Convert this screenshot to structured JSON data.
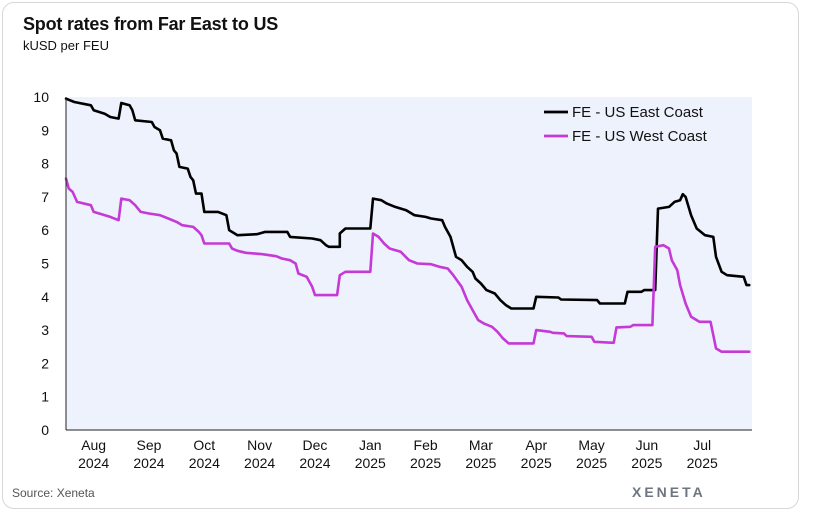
{
  "header": {
    "title": "Spot rates from Far East to US",
    "subtitle": "kUSD per FEU"
  },
  "footer": {
    "source": "Source: Xeneta",
    "brand": "XENETA"
  },
  "colors": {
    "east": "#000000",
    "west": "#c53ad6",
    "plot_bg": "#edf2fc",
    "axis": "#222222"
  },
  "chart_data": {
    "type": "line",
    "title": "Spot rates from Far East to US",
    "ylabel": "kUSD per FEU",
    "xlabel": "",
    "ylim": [
      0,
      10
    ],
    "xlim": [
      0,
      12.4
    ],
    "y_ticks": [
      0,
      1,
      2,
      3,
      4,
      5,
      6,
      7,
      8,
      9,
      10
    ],
    "x_ticks": [
      {
        "x": 0.5,
        "month": "Aug",
        "year": "2024"
      },
      {
        "x": 1.5,
        "month": "Sep",
        "year": "2024"
      },
      {
        "x": 2.5,
        "month": "Oct",
        "year": "2024"
      },
      {
        "x": 3.5,
        "month": "Nov",
        "year": "2024"
      },
      {
        "x": 4.5,
        "month": "Dec",
        "year": "2024"
      },
      {
        "x": 5.5,
        "month": "Jan",
        "year": "2025"
      },
      {
        "x": 6.5,
        "month": "Feb",
        "year": "2025"
      },
      {
        "x": 7.5,
        "month": "Mar",
        "year": "2025"
      },
      {
        "x": 8.5,
        "month": "Apr",
        "year": "2025"
      },
      {
        "x": 9.5,
        "month": "May",
        "year": "2025"
      },
      {
        "x": 10.5,
        "month": "Jun",
        "year": "2025"
      },
      {
        "x": 11.5,
        "month": "Jul",
        "year": "2025"
      }
    ],
    "legend": "top-right",
    "series": [
      {
        "name": "FE - US East Coast",
        "color": "#000000",
        "points": [
          [
            0.0,
            9.95
          ],
          [
            0.15,
            9.85
          ],
          [
            0.45,
            9.75
          ],
          [
            0.5,
            9.6
          ],
          [
            0.7,
            9.5
          ],
          [
            0.8,
            9.4
          ],
          [
            0.95,
            9.35
          ],
          [
            1.0,
            9.82
          ],
          [
            1.15,
            9.75
          ],
          [
            1.2,
            9.6
          ],
          [
            1.25,
            9.3
          ],
          [
            1.55,
            9.25
          ],
          [
            1.6,
            9.1
          ],
          [
            1.7,
            9.0
          ],
          [
            1.75,
            8.75
          ],
          [
            1.9,
            8.7
          ],
          [
            1.95,
            8.4
          ],
          [
            2.0,
            8.3
          ],
          [
            2.05,
            7.9
          ],
          [
            2.2,
            7.85
          ],
          [
            2.25,
            7.6
          ],
          [
            2.3,
            7.5
          ],
          [
            2.35,
            7.1
          ],
          [
            2.45,
            7.1
          ],
          [
            2.5,
            6.55
          ],
          [
            2.75,
            6.55
          ],
          [
            2.9,
            6.45
          ],
          [
            2.95,
            6.0
          ],
          [
            3.0,
            5.95
          ],
          [
            3.1,
            5.85
          ],
          [
            3.45,
            5.88
          ],
          [
            3.6,
            5.95
          ],
          [
            4.0,
            5.95
          ],
          [
            4.05,
            5.8
          ],
          [
            4.45,
            5.75
          ],
          [
            4.6,
            5.7
          ],
          [
            4.7,
            5.55
          ],
          [
            4.75,
            5.5
          ],
          [
            4.95,
            5.5
          ],
          [
            4.95,
            5.9
          ],
          [
            5.05,
            6.05
          ],
          [
            5.5,
            6.05
          ],
          [
            5.55,
            6.95
          ],
          [
            5.7,
            6.9
          ],
          [
            5.8,
            6.8
          ],
          [
            5.95,
            6.7
          ],
          [
            6.15,
            6.6
          ],
          [
            6.3,
            6.45
          ],
          [
            6.5,
            6.4
          ],
          [
            6.6,
            6.35
          ],
          [
            6.8,
            6.3
          ],
          [
            6.85,
            6.1
          ],
          [
            6.95,
            5.8
          ],
          [
            7.05,
            5.2
          ],
          [
            7.15,
            5.1
          ],
          [
            7.25,
            4.9
          ],
          [
            7.35,
            4.75
          ],
          [
            7.4,
            4.55
          ],
          [
            7.5,
            4.4
          ],
          [
            7.6,
            4.2
          ],
          [
            7.75,
            4.1
          ],
          [
            7.85,
            3.9
          ],
          [
            7.95,
            3.75
          ],
          [
            8.05,
            3.65
          ],
          [
            8.45,
            3.65
          ],
          [
            8.5,
            4.0
          ],
          [
            8.9,
            3.98
          ],
          [
            8.95,
            3.92
          ],
          [
            9.6,
            3.9
          ],
          [
            9.65,
            3.8
          ],
          [
            10.1,
            3.8
          ],
          [
            10.15,
            4.15
          ],
          [
            10.4,
            4.15
          ],
          [
            10.45,
            4.2
          ],
          [
            10.65,
            4.2
          ],
          [
            10.7,
            6.65
          ],
          [
            10.9,
            6.7
          ],
          [
            11.0,
            6.85
          ],
          [
            11.1,
            6.9
          ],
          [
            11.15,
            7.08
          ],
          [
            11.2,
            7.0
          ],
          [
            11.3,
            6.45
          ],
          [
            11.4,
            6.05
          ],
          [
            11.55,
            5.85
          ],
          [
            11.7,
            5.8
          ],
          [
            11.75,
            5.2
          ],
          [
            11.85,
            4.75
          ],
          [
            11.95,
            4.65
          ],
          [
            12.25,
            4.6
          ],
          [
            12.3,
            4.35
          ],
          [
            12.35,
            4.35
          ]
        ]
      },
      {
        "name": "FE - US West Coast",
        "color": "#c53ad6",
        "points": [
          [
            0.0,
            7.55
          ],
          [
            0.05,
            7.25
          ],
          [
            0.12,
            7.15
          ],
          [
            0.2,
            6.85
          ],
          [
            0.45,
            6.75
          ],
          [
            0.5,
            6.55
          ],
          [
            0.6,
            6.5
          ],
          [
            0.8,
            6.4
          ],
          [
            0.95,
            6.3
          ],
          [
            1.0,
            6.95
          ],
          [
            1.15,
            6.9
          ],
          [
            1.25,
            6.75
          ],
          [
            1.35,
            6.55
          ],
          [
            1.5,
            6.5
          ],
          [
            1.7,
            6.45
          ],
          [
            1.85,
            6.35
          ],
          [
            2.0,
            6.25
          ],
          [
            2.1,
            6.15
          ],
          [
            2.3,
            6.1
          ],
          [
            2.4,
            5.95
          ],
          [
            2.45,
            5.85
          ],
          [
            2.5,
            5.6
          ],
          [
            2.95,
            5.6
          ],
          [
            3.0,
            5.45
          ],
          [
            3.1,
            5.38
          ],
          [
            3.25,
            5.32
          ],
          [
            3.55,
            5.28
          ],
          [
            3.8,
            5.22
          ],
          [
            3.9,
            5.15
          ],
          [
            4.05,
            5.1
          ],
          [
            4.15,
            5.0
          ],
          [
            4.2,
            4.7
          ],
          [
            4.35,
            4.6
          ],
          [
            4.4,
            4.45
          ],
          [
            4.45,
            4.3
          ],
          [
            4.5,
            4.05
          ],
          [
            4.9,
            4.05
          ],
          [
            4.95,
            4.65
          ],
          [
            5.05,
            4.75
          ],
          [
            5.5,
            4.75
          ],
          [
            5.55,
            5.9
          ],
          [
            5.65,
            5.8
          ],
          [
            5.75,
            5.6
          ],
          [
            5.85,
            5.45
          ],
          [
            6.05,
            5.35
          ],
          [
            6.2,
            5.1
          ],
          [
            6.35,
            5.0
          ],
          [
            6.6,
            4.98
          ],
          [
            6.75,
            4.9
          ],
          [
            6.9,
            4.85
          ],
          [
            7.0,
            4.65
          ],
          [
            7.15,
            4.3
          ],
          [
            7.25,
            3.9
          ],
          [
            7.35,
            3.6
          ],
          [
            7.45,
            3.3
          ],
          [
            7.55,
            3.2
          ],
          [
            7.7,
            3.1
          ],
          [
            7.8,
            2.95
          ],
          [
            7.9,
            2.75
          ],
          [
            8.0,
            2.6
          ],
          [
            8.45,
            2.6
          ],
          [
            8.5,
            3.0
          ],
          [
            8.75,
            2.95
          ],
          [
            8.8,
            2.92
          ],
          [
            9.0,
            2.9
          ],
          [
            9.05,
            2.82
          ],
          [
            9.5,
            2.8
          ],
          [
            9.55,
            2.65
          ],
          [
            9.9,
            2.62
          ],
          [
            9.95,
            3.08
          ],
          [
            10.2,
            3.1
          ],
          [
            10.25,
            3.15
          ],
          [
            10.6,
            3.15
          ],
          [
            10.65,
            5.5
          ],
          [
            10.8,
            5.55
          ],
          [
            10.9,
            5.45
          ],
          [
            10.95,
            5.1
          ],
          [
            11.05,
            4.8
          ],
          [
            11.1,
            4.35
          ],
          [
            11.2,
            3.8
          ],
          [
            11.3,
            3.4
          ],
          [
            11.45,
            3.25
          ],
          [
            11.65,
            3.25
          ],
          [
            11.7,
            2.85
          ],
          [
            11.75,
            2.45
          ],
          [
            11.85,
            2.35
          ],
          [
            12.35,
            2.35
          ]
        ]
      }
    ]
  }
}
